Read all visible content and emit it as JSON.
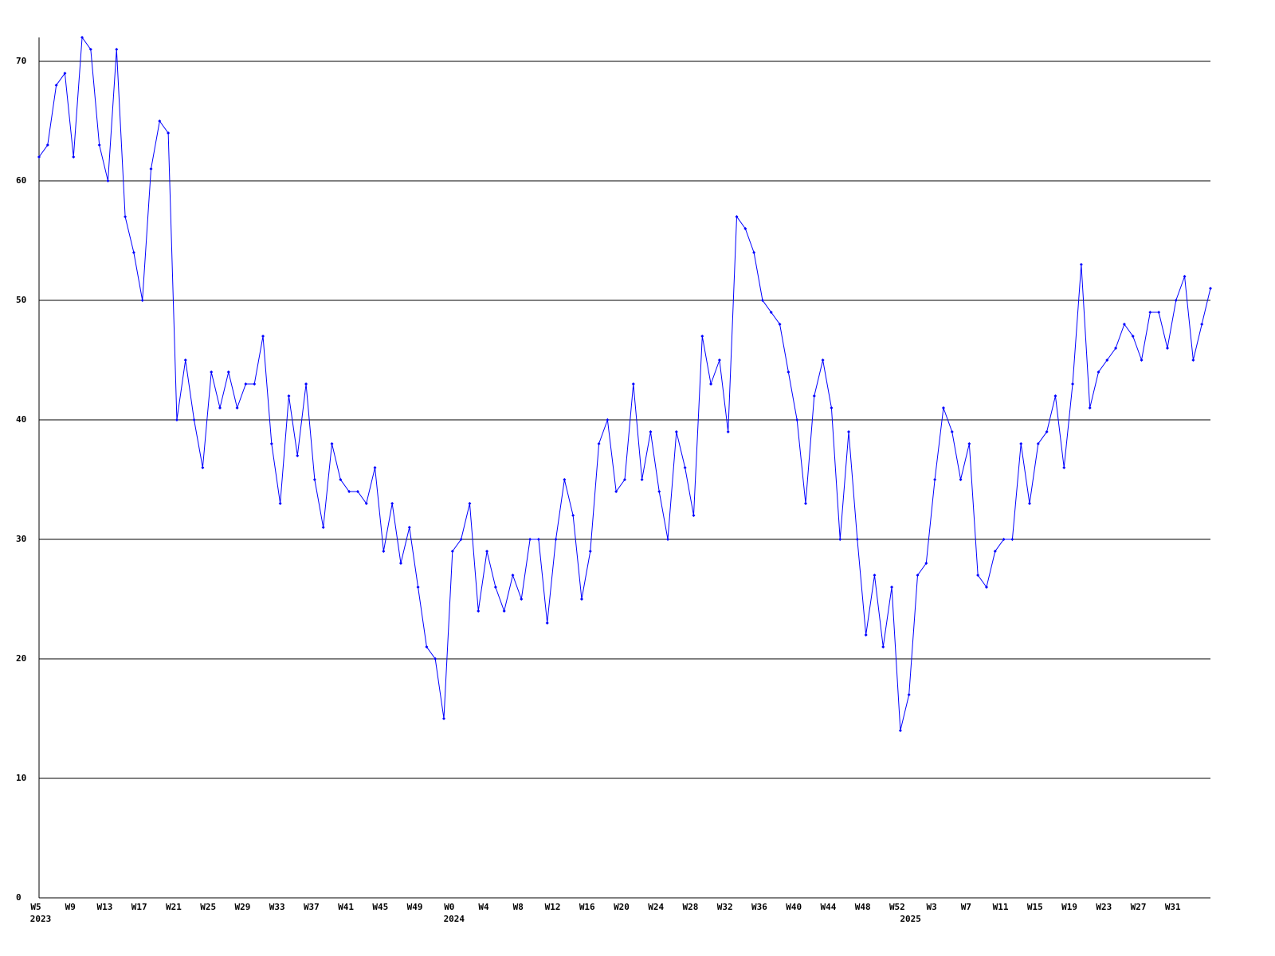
{
  "chart_data": {
    "type": "line",
    "categories": [
      "W5",
      null,
      null,
      null,
      "W9",
      null,
      null,
      null,
      "W13",
      null,
      null,
      null,
      "W17",
      null,
      null,
      null,
      "W21",
      null,
      null,
      null,
      "W25",
      null,
      null,
      null,
      "W29",
      null,
      null,
      null,
      "W33",
      null,
      null,
      null,
      "W37",
      null,
      null,
      null,
      "W41",
      null,
      null,
      null,
      "W45",
      null,
      null,
      null,
      "W49",
      null,
      null,
      null,
      "W0",
      null,
      null,
      null,
      "W4",
      null,
      null,
      null,
      "W8",
      null,
      null,
      null,
      "W12",
      null,
      null,
      null,
      "W16",
      null,
      null,
      null,
      "W20",
      null,
      null,
      null,
      "W24",
      null,
      null,
      null,
      "W28",
      null,
      null,
      null,
      "W32",
      null,
      null,
      null,
      "W36",
      null,
      null,
      null,
      "W40",
      null,
      null,
      null,
      "W44",
      null,
      null,
      null,
      "W48",
      null,
      null,
      null,
      "W52",
      null,
      null,
      null,
      "W3",
      null,
      null,
      null,
      "W7",
      null,
      null,
      null,
      "W11",
      null,
      null,
      null,
      "W15",
      null,
      null,
      null,
      "W19",
      null,
      null,
      null,
      "W23",
      null,
      null,
      null,
      "W27",
      null,
      null,
      null,
      "W31",
      null,
      null,
      null,
      null
    ],
    "year_labels": [
      "2023",
      null,
      null,
      null,
      null,
      null,
      null,
      null,
      null,
      null,
      null,
      null,
      null,
      null,
      null,
      null,
      null,
      null,
      null,
      null,
      null,
      null,
      null,
      null,
      null,
      null,
      null,
      null,
      null,
      null,
      null,
      null,
      null,
      null,
      null,
      null,
      null,
      null,
      null,
      null,
      null,
      null,
      null,
      null,
      null,
      null,
      null,
      null,
      "2024",
      null,
      null,
      null,
      null,
      null,
      null,
      null,
      null,
      null,
      null,
      null,
      null,
      null,
      null,
      null,
      null,
      null,
      null,
      null,
      null,
      null,
      null,
      null,
      null,
      null,
      null,
      null,
      null,
      null,
      null,
      null,
      null,
      null,
      null,
      null,
      null,
      null,
      null,
      null,
      null,
      null,
      null,
      null,
      null,
      null,
      null,
      null,
      null,
      null,
      null,
      null,
      null,
      "2025",
      null,
      null,
      null,
      null,
      null,
      null,
      null,
      null,
      null,
      null,
      null,
      null,
      null,
      null,
      null,
      null,
      null,
      null,
      null,
      null,
      null,
      null,
      null,
      null,
      null,
      null,
      null,
      null,
      null,
      null,
      null,
      null,
      null,
      null,
      null
    ],
    "series": [
      {
        "color": "#0000ff",
        "values": [
          62,
          63,
          68,
          69,
          62,
          72,
          71,
          63,
          60,
          71,
          57,
          54,
          50,
          61,
          65,
          64,
          40,
          45,
          40,
          36,
          44,
          41,
          44,
          41,
          43,
          43,
          47,
          38,
          33,
          42,
          37,
          43,
          35,
          31,
          38,
          35,
          34,
          34,
          33,
          36,
          29,
          33,
          28,
          31,
          26,
          21,
          20,
          15,
          29,
          30,
          33,
          24,
          29,
          26,
          24,
          27,
          25,
          30,
          30,
          23,
          30,
          35,
          32,
          25,
          29,
          38,
          40,
          34,
          35,
          43,
          35,
          39,
          34,
          30,
          39,
          36,
          32,
          47,
          43,
          45,
          39,
          57,
          56,
          54,
          50,
          49,
          48,
          44,
          40,
          33,
          42,
          45,
          41,
          30,
          39,
          30,
          22,
          27,
          21,
          26,
          14,
          17,
          27,
          28,
          35,
          41,
          39,
          35,
          38,
          27,
          26,
          29,
          30,
          30,
          38,
          33,
          38,
          39,
          42,
          36,
          43,
          53,
          41,
          44,
          45,
          46,
          48,
          47,
          45,
          49,
          49,
          46,
          50,
          52,
          45,
          48,
          51
        ]
      }
    ],
    "ylim": [
      0,
      72
    ],
    "yticks": [
      0,
      10,
      20,
      30,
      40,
      50,
      60,
      70
    ],
    "grid": true
  }
}
